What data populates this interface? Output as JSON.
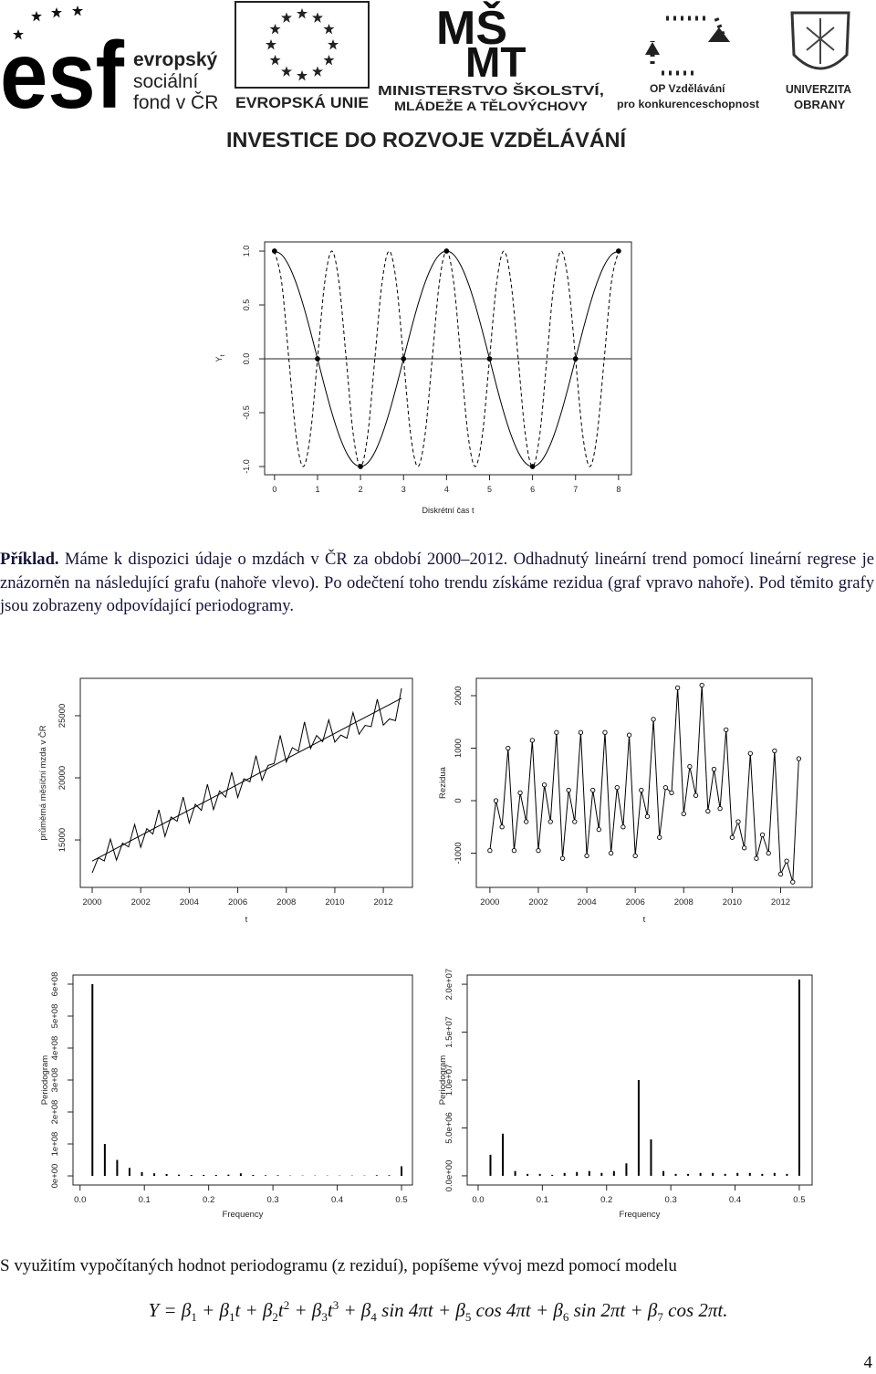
{
  "header": {
    "esf_logo": "esf",
    "esf_lines": [
      "evropský",
      "sociální",
      "fond v ČR"
    ],
    "eu": "EVROPSKÁ UNIE",
    "msmt_logo": [
      "MŠ",
      "MT"
    ],
    "msmt_lines": [
      "MINISTERSTVO ŠKOLSTVÍ,",
      "MLÁDEŽE A TĚLOVÝCHOVY"
    ],
    "op_lines": [
      "OP Vzdělávání",
      "pro konkurenceschopnost"
    ],
    "unob_lines": [
      "UNIVERZITA",
      "OBRANY"
    ],
    "slogan": "INVESTICE DO ROZVOJE VZDĚLÁVÁNÍ"
  },
  "example": {
    "label": "Příklad.",
    "text": " Máme k dispozici údaje o mzdách v ČR za období 2000–2012. Odhadnutý lineární trend pomocí lineární regrese je znázorněn na následující grafu (nahoře vlevo). Po odečtení toho trendu získáme rezidua (graf vpravo nahoře). Pod těmito grafy jsou zobrazeny odpovídající periodogramy."
  },
  "conclusion": "S využitím vypočítaných hodnot periodogramu (z reziduí), popíšeme vývoj mezd pomocí modelu",
  "formula": [
    {
      "text": "Y = β",
      "sub": "1"
    },
    {
      "text": " + β",
      "sub": "1"
    },
    {
      "text": "t + β",
      "sub": "2"
    },
    {
      "text": "t",
      "sup": "2"
    },
    {
      "text": " + β",
      "sub": "3"
    },
    {
      "text": "t",
      "sup": "3"
    },
    {
      "text": " + β",
      "sub": "4"
    },
    {
      "text": " sin 4πt + β",
      "sub": "5"
    },
    {
      "text": " cos 4πt + β",
      "sub": "6"
    },
    {
      "text": " sin 2πt + β",
      "sub": "7"
    },
    {
      "text": " cos 2πt."
    }
  ],
  "page_number": "4",
  "chart_data": [
    {
      "type": "line",
      "xlabel": "Diskrétní čas t",
      "ylabel": "Y",
      "ylabel_sub": "t",
      "color": "#000",
      "xlim": [
        -0.23,
        8.3
      ],
      "ylim": [
        -1.076,
        1.085
      ],
      "xticks": [
        0,
        1,
        2,
        3,
        4,
        5,
        6,
        7,
        8
      ],
      "yticks": [
        {
          "value": -1,
          "label": "-1.0"
        },
        -0.5,
        {
          "value": 0,
          "label": "0.0"
        },
        0.5,
        {
          "value": 1,
          "label": "1.0"
        }
      ],
      "hline": 0,
      "x": [
        0,
        0.167,
        0.333,
        0.5,
        0.667,
        0.833,
        1,
        1.167,
        1.333,
        1.5,
        1.667,
        1.833,
        2,
        2.167,
        2.333,
        2.5,
        2.667,
        2.833,
        3,
        3.167,
        3.333,
        3.5,
        3.667,
        3.833,
        4,
        4.167,
        4.333,
        4.5,
        4.667,
        4.833,
        5,
        5.167,
        5.333,
        5.5,
        5.667,
        5.833,
        6,
        6.167,
        6.333,
        6.5,
        6.667,
        6.833,
        7,
        7.167,
        7.333,
        7.5,
        7.667,
        7.833,
        8
      ],
      "series": [
        {
          "style": "solid",
          "smooth": true,
          "values": [
            1,
            0.966,
            0.866,
            0.707,
            0.5,
            0.259,
            0,
            -0.259,
            -0.5,
            -0.707,
            -0.866,
            -0.966,
            -1,
            -0.966,
            -0.866,
            -0.707,
            -0.5,
            -0.259,
            0,
            0.259,
            0.5,
            0.707,
            0.866,
            0.966,
            1,
            0.966,
            0.866,
            0.707,
            0.5,
            0.259,
            0,
            -0.259,
            -0.5,
            -0.707,
            -0.866,
            -0.966,
            -1,
            -0.966,
            -0.866,
            -0.707,
            -0.5,
            -0.259,
            0,
            0.259,
            0.5,
            0.707,
            0.866,
            0.966,
            1
          ]
        },
        {
          "style": "dashed",
          "smooth": true,
          "values": [
            1,
            0.707,
            0,
            -0.707,
            -1,
            -0.707,
            0,
            0.707,
            1,
            0.707,
            0,
            -0.707,
            -1,
            -0.707,
            0,
            0.707,
            1,
            0.707,
            0,
            -0.707,
            -1,
            -0.707,
            0,
            0.707,
            1,
            0.707,
            0,
            -0.707,
            -1,
            -0.707,
            0,
            0.707,
            1,
            0.707,
            0,
            -0.707,
            -1,
            -0.707,
            0,
            0.707,
            1,
            0.707,
            0,
            -0.707,
            -1,
            -0.707,
            0,
            0.707,
            1
          ]
        },
        {
          "style": "none",
          "marker": "dot",
          "x": [
            0,
            1,
            2,
            3,
            4,
            5,
            6,
            7,
            8
          ],
          "values": [
            1,
            0,
            -1,
            0,
            1,
            0,
            -1,
            0,
            1
          ]
        }
      ]
    },
    {
      "type": "line",
      "xlabel": "t",
      "ylabel": "průměrná měsíční mzda v ČR",
      "color": "#000",
      "xlim": [
        1999.51,
        2013.2
      ],
      "ylim": [
        11180,
        28010
      ],
      "xticks": [
        2000,
        2002,
        2004,
        2006,
        2008,
        2010,
        2012
      ],
      "yticks": [
        15000,
        20000,
        25000
      ],
      "x": [
        2000,
        2000.25,
        2000.5,
        2000.75,
        2001,
        2001.25,
        2001.5,
        2001.75,
        2002,
        2002.25,
        2002.5,
        2002.75,
        2003,
        2003.25,
        2003.5,
        2003.75,
        2004,
        2004.25,
        2004.5,
        2004.75,
        2005,
        2005.25,
        2005.5,
        2005.75,
        2006,
        2006.25,
        2006.5,
        2006.75,
        2007,
        2007.25,
        2007.5,
        2007.75,
        2008,
        2008.25,
        2008.5,
        2008.75,
        2009,
        2009.25,
        2009.5,
        2009.75,
        2010,
        2010.25,
        2010.5,
        2010.75,
        2011,
        2011.25,
        2011.5,
        2011.75,
        2012,
        2012.25,
        2012.5,
        2012.75
      ],
      "series": [
        {
          "style": "solid",
          "values": [
            12350,
            13560,
            13310,
            15070,
            13380,
            14740,
            14440,
            16250,
            14410,
            15910,
            15470,
            17430,
            15280,
            16840,
            16500,
            18460,
            16360,
            17870,
            17380,
            19480,
            17440,
            18950,
            18450,
            20460,
            18420,
            19930,
            19680,
            21790,
            19800,
            21000,
            21160,
            23420,
            21270,
            22430,
            22140,
            24500,
            22350,
            23410,
            22920,
            24670,
            22880,
            23440,
            23190,
            25250,
            23510,
            24220,
            24120,
            26330,
            24240,
            24740,
            24600,
            27210
          ]
        },
        {
          "style": "solid",
          "x": [
            2000,
            2012.75
          ],
          "values": [
            13300,
            26407
          ]
        }
      ]
    },
    {
      "type": "line",
      "xlabel": "t",
      "ylabel": "Rezidua",
      "color": "#000",
      "xlim": [
        1999.44,
        2013.3
      ],
      "ylim": [
        -1652,
        2330
      ],
      "xticks": [
        2000,
        2002,
        2004,
        2006,
        2008,
        2010,
        2012
      ],
      "yticks": [
        -1000,
        0,
        1000,
        2000
      ],
      "x": [
        2000,
        2000.25,
        2000.5,
        2000.75,
        2001,
        2001.25,
        2001.5,
        2001.75,
        2002,
        2002.25,
        2002.5,
        2002.75,
        2003,
        2003.25,
        2003.5,
        2003.75,
        2004,
        2004.25,
        2004.5,
        2004.75,
        2005,
        2005.25,
        2005.5,
        2005.75,
        2006,
        2006.25,
        2006.5,
        2006.75,
        2007,
        2007.25,
        2007.5,
        2007.75,
        2008,
        2008.25,
        2008.5,
        2008.75,
        2009,
        2009.25,
        2009.5,
        2009.75,
        2010,
        2010.25,
        2010.5,
        2010.75,
        2011,
        2011.25,
        2011.5,
        2011.75,
        2012,
        2012.25,
        2012.5,
        2012.75
      ],
      "series": [
        {
          "style": "solid",
          "marker": "circle",
          "values": [
            -950,
            0,
            -500,
            1000,
            -950,
            150,
            -400,
            1150,
            -950,
            300,
            -400,
            1300,
            -1100,
            200,
            -400,
            1300,
            -1050,
            200,
            -550,
            1300,
            -1000,
            250,
            -500,
            1250,
            -1050,
            200,
            -300,
            1550,
            -700,
            250,
            150,
            2150,
            -250,
            650,
            100,
            2200,
            -200,
            600,
            -150,
            1350,
            -700,
            -400,
            -900,
            900,
            -1100,
            -650,
            -1000,
            950,
            -1400,
            -1150,
            -1550,
            800
          ]
        }
      ]
    },
    {
      "type": "bar",
      "xlabel": "Frequency",
      "ylabel": "Periodogram",
      "color": "#000",
      "xlim": [
        -0.011,
        0.517
      ],
      "ylim": [
        -28500000,
        628500000
      ],
      "xticks": [
        {
          "value": 0,
          "label": "0.0"
        },
        0.1,
        0.2,
        0.3,
        0.4,
        0.5
      ],
      "yticks": [
        {
          "value": 0,
          "label": "0e+00"
        },
        {
          "value": 100000000,
          "label": "1e+08"
        },
        {
          "value": 200000000,
          "label": "2e+08"
        },
        {
          "value": 300000000,
          "label": "3e+08"
        },
        {
          "value": 400000000,
          "label": "4e+08"
        },
        {
          "value": 500000000,
          "label": "5e+08"
        },
        {
          "value": 600000000,
          "label": "6e+08"
        }
      ],
      "x": [
        0.0192,
        0.0385,
        0.0577,
        0.0769,
        0.0962,
        0.1154,
        0.1346,
        0.1538,
        0.1731,
        0.1923,
        0.2115,
        0.2308,
        0.25,
        0.2692,
        0.2885,
        0.3077,
        0.3269,
        0.3462,
        0.3654,
        0.3846,
        0.4038,
        0.4231,
        0.4423,
        0.4615,
        0.4808,
        0.5
      ],
      "values": [
        600000000,
        100000000,
        50000000,
        25000000,
        12000000,
        8000000,
        6000000,
        4000000,
        3000000,
        3000000,
        3000000,
        4000000,
        8000000,
        3000000,
        2000000,
        2000000,
        1000000,
        1000000,
        1000000,
        1000000,
        1000000,
        1000000,
        1000000,
        2000000,
        2000000,
        30000000
      ]
    },
    {
      "type": "bar",
      "xlabel": "Frequency",
      "ylabel": "Periodogram",
      "color": "#000",
      "xlim": [
        -0.017,
        0.52
      ],
      "ylim": [
        -960000,
        20960000
      ],
      "xticks": [
        {
          "value": 0,
          "label": "0.0"
        },
        0.1,
        0.2,
        0.3,
        0.4,
        0.5
      ],
      "yticks": [
        {
          "value": 0,
          "label": "0.0e+00"
        },
        {
          "value": 5000000,
          "label": "5.0e+06"
        },
        {
          "value": 10000000,
          "label": "1.0e+07"
        },
        {
          "value": 15000000,
          "label": "1.5e+07"
        },
        {
          "value": 20000000,
          "label": "2.0e+07"
        }
      ],
      "x": [
        0.0192,
        0.0385,
        0.0577,
        0.0769,
        0.0962,
        0.1154,
        0.1346,
        0.1538,
        0.1731,
        0.1923,
        0.2115,
        0.2308,
        0.25,
        0.2692,
        0.2885,
        0.3077,
        0.3269,
        0.3462,
        0.3654,
        0.3846,
        0.4038,
        0.4231,
        0.4423,
        0.4615,
        0.4808,
        0.5
      ],
      "values": [
        2200000,
        4400000,
        500000,
        200000,
        200000,
        100000,
        300000,
        400000,
        500000,
        300000,
        500000,
        1300000,
        10000000,
        3800000,
        500000,
        200000,
        200000,
        300000,
        300000,
        200000,
        300000,
        300000,
        200000,
        300000,
        200000,
        20500000
      ]
    }
  ]
}
